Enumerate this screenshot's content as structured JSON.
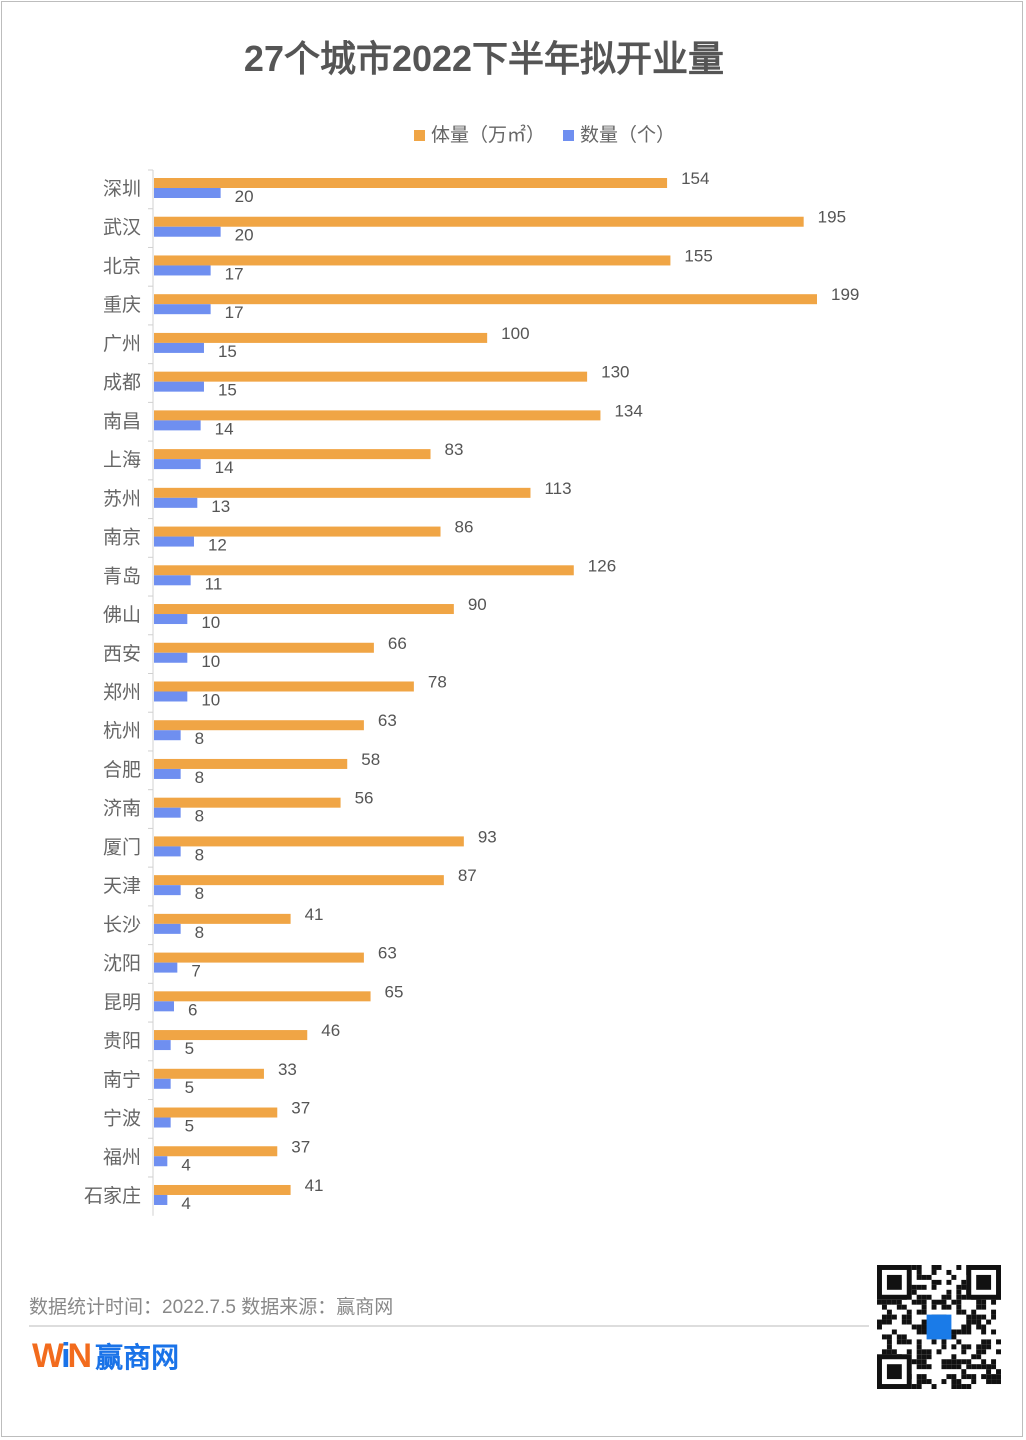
{
  "chart_data": {
    "type": "bar",
    "orientation": "horizontal",
    "title": "27个城市2022下半年拟开业量",
    "categories": [
      "深圳",
      "武汉",
      "北京",
      "重庆",
      "广州",
      "成都",
      "南昌",
      "上海",
      "苏州",
      "南京",
      "青岛",
      "佛山",
      "西安",
      "郑州",
      "杭州",
      "合肥",
      "济南",
      "厦门",
      "天津",
      "长沙",
      "沈阳",
      "昆明",
      "贵阳",
      "南宁",
      "宁波",
      "福州",
      "石家庄"
    ],
    "series": [
      {
        "name": "体量（万㎡）",
        "color": "#f0a545",
        "values": [
          154,
          195,
          155,
          199,
          100,
          130,
          134,
          83,
          113,
          86,
          126,
          90,
          66,
          78,
          63,
          58,
          56,
          93,
          87,
          41,
          63,
          65,
          46,
          33,
          37,
          37,
          41
        ]
      },
      {
        "name": "数量（个）",
        "color": "#6f8ff0",
        "values": [
          20,
          20,
          17,
          17,
          15,
          15,
          14,
          14,
          13,
          12,
          11,
          10,
          10,
          10,
          8,
          8,
          8,
          8,
          8,
          8,
          7,
          6,
          5,
          5,
          5,
          4,
          4
        ]
      }
    ],
    "xlim": [
      0,
      200
    ],
    "grid": false,
    "legend_position": "top",
    "data_labels": true
  },
  "footer": {
    "note": "数据统计时间：2022.7.5  数据来源：赢商网",
    "logo_mark": "WIN",
    "logo_text": "赢商网"
  }
}
